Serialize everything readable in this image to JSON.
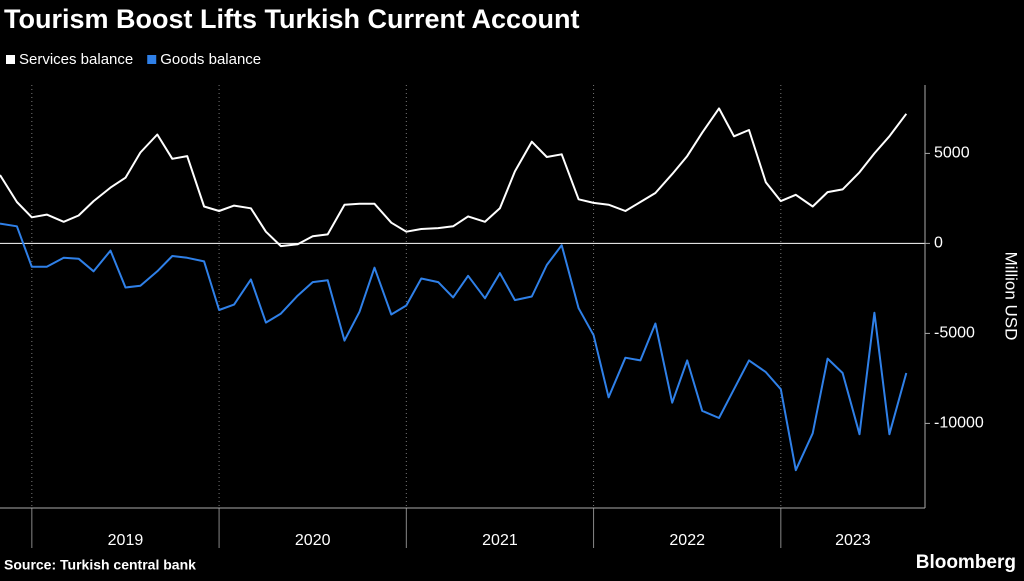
{
  "chart_data": {
    "type": "line",
    "title": "Tourism Boost Lifts Turkish Current Account",
    "y_label": "Million USD",
    "source": "Source: Turkish central bank",
    "brand": "Bloomberg",
    "x": [
      2018.83,
      2018.92,
      2019,
      2019.08,
      2019.17,
      2019.25,
      2019.33,
      2019.42,
      2019.5,
      2019.58,
      2019.67,
      2019.75,
      2019.83,
      2019.92,
      2020,
      2020.08,
      2020.17,
      2020.25,
      2020.33,
      2020.42,
      2020.5,
      2020.58,
      2020.67,
      2020.75,
      2020.83,
      2020.92,
      2021,
      2021.08,
      2021.17,
      2021.25,
      2021.33,
      2021.42,
      2021.5,
      2021.58,
      2021.67,
      2021.75,
      2021.83,
      2021.92,
      2022,
      2022.08,
      2022.17,
      2022.25,
      2022.33,
      2022.42,
      2022.5,
      2022.58,
      2022.67,
      2022.75,
      2022.83,
      2022.92,
      2023,
      2023.08,
      2023.17,
      2023.25,
      2023.33,
      2023.42,
      2023.5,
      2023.58,
      2023.67
    ],
    "series": [
      {
        "name": "Services balance",
        "color": "#ffffff",
        "values": [
          3800,
          2300,
          1450,
          1600,
          1200,
          1550,
          2350,
          3100,
          3650,
          5050,
          6050,
          4700,
          4850,
          2050,
          1800,
          2100,
          1950,
          650,
          -150,
          -50,
          400,
          500,
          2150,
          2200,
          2200,
          1150,
          650,
          800,
          850,
          950,
          1500,
          1200,
          1950,
          4000,
          5650,
          4800,
          4950,
          2450,
          2250,
          2150,
          1800,
          2300,
          2800,
          3850,
          4850,
          6150,
          7500,
          5950,
          6300,
          3400,
          2350,
          2700,
          2050,
          2850,
          3000,
          3950,
          5000,
          5950,
          7200
        ]
      },
      {
        "name": "Goods balance",
        "color": "#2f80e8",
        "values": [
          1100,
          950,
          -1300,
          -1300,
          -800,
          -850,
          -1550,
          -400,
          -2450,
          -2350,
          -1550,
          -700,
          -800,
          -1000,
          -3700,
          -3400,
          -2000,
          -4400,
          -3900,
          -2900,
          -2150,
          -2050,
          -5400,
          -3800,
          -1350,
          -3950,
          -3450,
          -1950,
          -2150,
          -3000,
          -1800,
          -3050,
          -1650,
          -3150,
          -2950,
          -1200,
          -100,
          -3600,
          -5100,
          -8550,
          -6350,
          -6500,
          -4450,
          -8850,
          -6500,
          -9300,
          -9700,
          -8100,
          -6500,
          -7150,
          -8100,
          -12600,
          -10550,
          -6400,
          -7200,
          -10600,
          -3850,
          -10600,
          -7200
        ]
      }
    ],
    "xlim": [
      2018.83,
      2023.77
    ],
    "xticks": [
      2019,
      2020,
      2021,
      2022,
      2023
    ],
    "ylim": [
      -14700,
      8800
    ],
    "yticks": [
      -10000,
      -5000,
      0,
      5000
    ],
    "zero_line": true
  }
}
